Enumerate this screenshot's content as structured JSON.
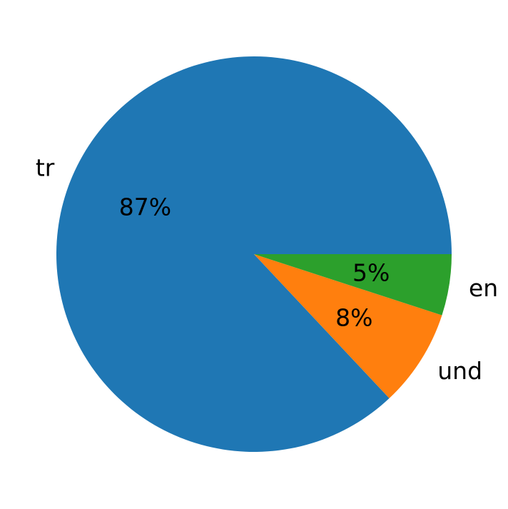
{
  "chart_data": {
    "type": "pie",
    "categories": [
      "tr",
      "und",
      "en"
    ],
    "values": [
      87,
      8,
      5
    ],
    "labels": [
      "tr",
      "und",
      "en"
    ],
    "pct_labels": [
      "87%",
      "8%",
      "5%"
    ],
    "colors": [
      "#1f77b4",
      "#ff7f0e",
      "#2ca02c"
    ],
    "start_angle": 0,
    "counterclockwise": true,
    "title": ""
  }
}
